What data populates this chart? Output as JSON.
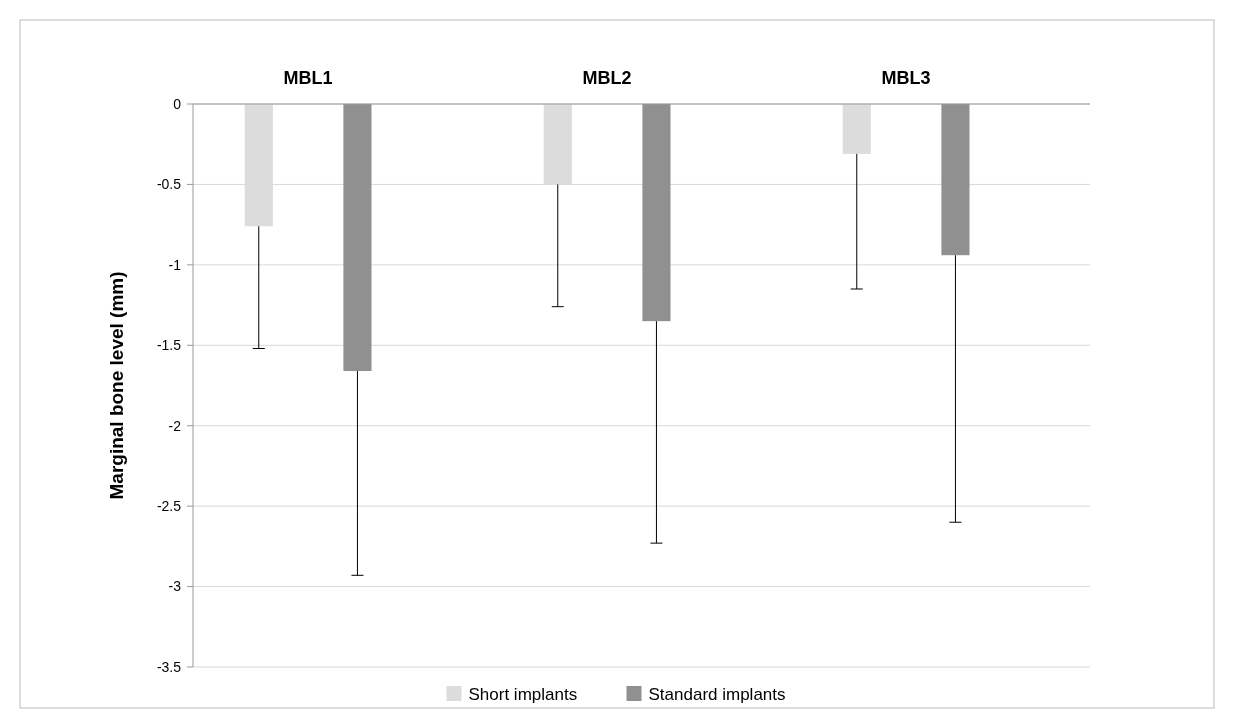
{
  "chart_data": {
    "type": "bar",
    "ylabel": "Marginal bone level (mm)",
    "categories": [
      "MBL1",
      "MBL2",
      "MBL3"
    ],
    "series": [
      {
        "name": "Short implants",
        "color": "#dcdcdc",
        "values": [
          -0.76,
          -0.5,
          -0.31
        ],
        "errors": [
          [
            -1.52,
            -0.76
          ],
          [
            -1.26,
            -0.5
          ],
          [
            -1.15,
            -0.31
          ]
        ]
      },
      {
        "name": "Standard implants",
        "color": "#909090",
        "values": [
          -1.66,
          -1.35,
          -0.94
        ],
        "errors": [
          [
            -2.93,
            -1.66
          ],
          [
            -2.73,
            -1.35
          ],
          [
            -2.6,
            -0.94
          ]
        ]
      }
    ],
    "ylim": [
      -3.5,
      0
    ],
    "yticks": [
      -3.5,
      -3,
      -2.5,
      -2,
      -1.5,
      -1,
      -0.5,
      0
    ],
    "grid": "y",
    "legend": "bottom"
  }
}
